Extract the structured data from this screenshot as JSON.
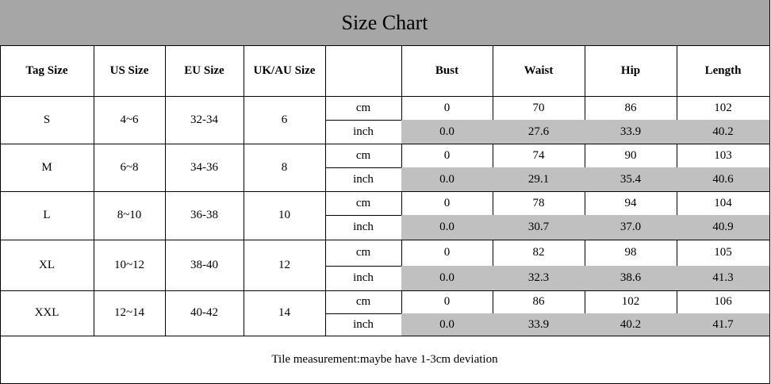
{
  "title": "Size Chart",
  "table": {
    "header": [
      "Tag Size",
      "US Size",
      "EU Size",
      "UK/AU Size",
      "Bust",
      "Waist",
      "Hip",
      "Length"
    ],
    "rows": [
      {
        "tag": "S",
        "us": "4~6",
        "eu": "32-34",
        "uk": "6",
        "cm": {
          "unit": "cm",
          "values": [
            "0",
            "70",
            "86",
            "102"
          ]
        },
        "inch": {
          "unit": "inch",
          "values": [
            "0.0",
            "27.6",
            "33.9",
            "40.2"
          ]
        }
      },
      {
        "tag": "M",
        "us": "6~8",
        "eu": "34-36",
        "uk": "8",
        "cm": {
          "unit": "cm",
          "values": [
            "0",
            "74",
            "90",
            "103"
          ]
        },
        "inch": {
          "unit": "inch",
          "values": [
            "0.0",
            "29.1",
            "35.4",
            "40.6"
          ]
        }
      },
      {
        "tag": "L",
        "us": "8~10",
        "eu": "36-38",
        "uk": "10",
        "cm": {
          "unit": "cm",
          "values": [
            "0",
            "78",
            "94",
            "104"
          ]
        },
        "inch": {
          "unit": "inch",
          "values": [
            "0.0",
            "30.7",
            "37.0",
            "40.9"
          ]
        }
      },
      {
        "tag": "XL",
        "us": "10~12",
        "eu": "38-40",
        "uk": "12",
        "cm": {
          "unit": "cm",
          "values": [
            "0",
            "82",
            "98",
            "105"
          ]
        },
        "inch": {
          "unit": "inch",
          "values": [
            "0.0",
            "32.3",
            "38.6",
            "41.3"
          ]
        }
      },
      {
        "tag": "XXL",
        "us": "12~14",
        "eu": "40-42",
        "uk": "14",
        "cm": {
          "unit": "cm",
          "values": [
            "0",
            "86",
            "102",
            "106"
          ]
        },
        "inch": {
          "unit": "inch",
          "values": [
            "0.0",
            "33.9",
            "40.2",
            "41.7"
          ]
        }
      }
    ]
  },
  "note": "Tile measurement:maybe have 1-3cm deviation"
}
